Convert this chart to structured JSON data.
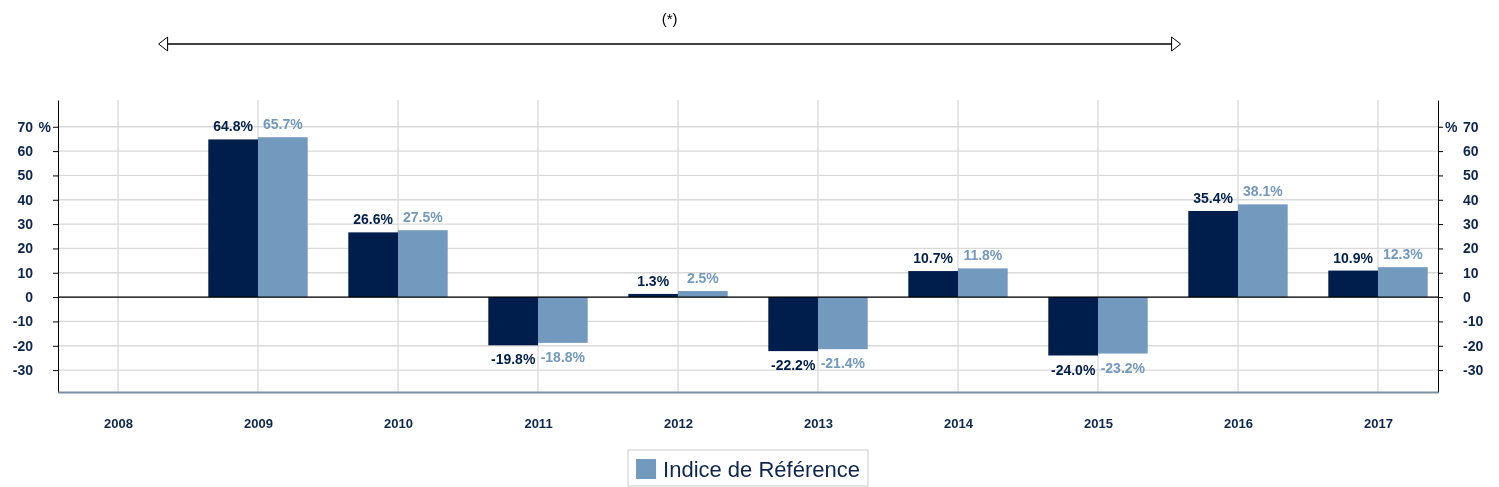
{
  "chart_data": {
    "type": "bar",
    "categories": [
      "2008",
      "2009",
      "2010",
      "2011",
      "2012",
      "2013",
      "2014",
      "2015",
      "2016",
      "2017"
    ],
    "series": [
      {
        "color": "#001e4b",
        "values": [
          null,
          64.8,
          26.6,
          -19.8,
          1.3,
          -22.2,
          10.7,
          -24.0,
          35.4,
          10.9
        ],
        "value_labels": [
          null,
          "64.8%",
          "26.6%",
          "-19.8%",
          "1.3%",
          "-22.2%",
          "10.7%",
          "-24.0%",
          "35.4%",
          "10.9%"
        ]
      },
      {
        "name": "Indice de Référence",
        "color": "#7299be",
        "values": [
          null,
          65.7,
          27.5,
          -18.8,
          2.5,
          -21.4,
          11.8,
          -23.2,
          38.1,
          12.3
        ],
        "value_labels": [
          null,
          "65.7%",
          "27.5%",
          "-18.8%",
          "2.5%",
          "-21.4%",
          "11.8%",
          "-23.2%",
          "38.1%",
          "12.3%"
        ]
      }
    ],
    "ylim": [
      -39,
      81
    ],
    "yticks": [
      -30,
      -20,
      -10,
      0,
      10,
      20,
      30,
      40,
      50,
      60,
      70
    ],
    "y2lim": [
      -39,
      81
    ],
    "y2ticks": [
      -30,
      -20,
      -10,
      0,
      10,
      20,
      30,
      40,
      50,
      60,
      70
    ],
    "ylabel": "%",
    "y2label": "%",
    "grid": true,
    "legend": "bottom",
    "annotations": [
      "(*)"
    ]
  }
}
